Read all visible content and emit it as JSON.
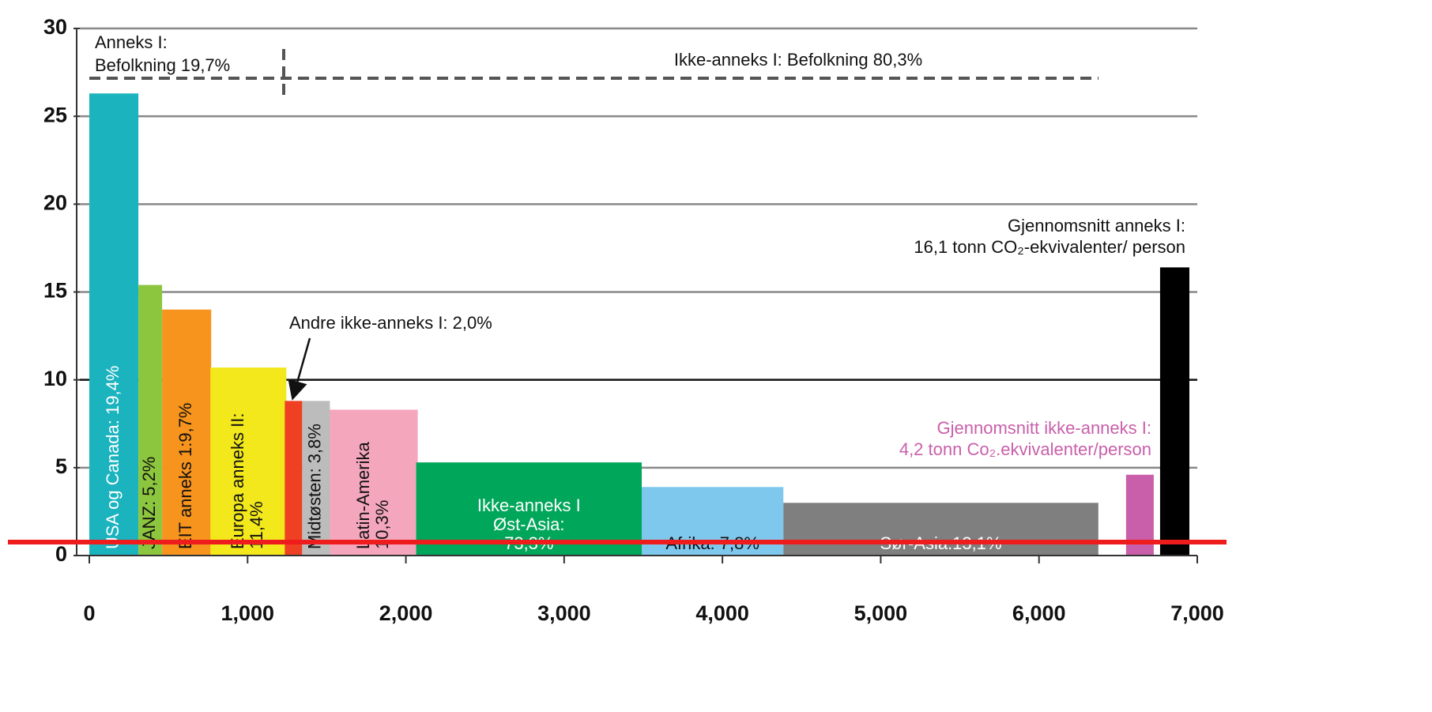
{
  "chart_data": {
    "type": "bar",
    "x_start": [
      0,
      310,
      460,
      765,
      1235,
      1345,
      1520,
      2065,
      3490,
      4385,
      6550,
      6765
    ],
    "x_end": [
      310,
      460,
      770,
      1245,
      1345,
      1520,
      2075,
      3490,
      4385,
      6375,
      6725,
      6950
    ],
    "values": [
      26.3,
      15.4,
      14.0,
      10.7,
      8.8,
      8.8,
      8.3,
      5.3,
      3.9,
      3.0,
      4.6,
      16.4
    ],
    "colors": [
      "#1bb3be",
      "#8cc63e",
      "#f7941d",
      "#f2e81c",
      "#ee4023",
      "#bcbcbc",
      "#f4a6bd",
      "#00a65a",
      "#7ec8ee",
      "#7f7f7f",
      "#c95faa",
      "#000000"
    ],
    "labels": [
      [
        "USA og Canada: 19,4%"
      ],
      [
        "JANZ: 5,2%"
      ],
      [
        "EIT anneks 1:9,7%"
      ],
      [
        "Europa anneks II:",
        "11,4%"
      ],
      null,
      [
        "Midtøsten: 3,8%"
      ],
      [
        "Latin-Amerika",
        "10,3%"
      ],
      [
        "Ikke-anneks I",
        "Øst-Asia:",
        "73,3%"
      ],
      [
        "Afrika: 7,8%"
      ],
      [
        "Sør-Asia:13,1%"
      ],
      null,
      null
    ],
    "xlim": [
      0,
      7000
    ],
    "xticks": [
      0,
      {
        "value": 1000,
        "label": "1,000"
      },
      {
        "value": 2000,
        "label": "2,000"
      },
      {
        "value": 3000,
        "label": "3,000"
      },
      {
        "value": 4000,
        "label": "4,000"
      },
      {
        "value": 5000,
        "label": "5,000"
      },
      {
        "value": 6000,
        "label": "6,000"
      },
      {
        "value": 7000,
        "label": "7,000"
      }
    ],
    "ylim": [
      0,
      30
    ],
    "yticks": [
      0,
      5,
      10,
      15,
      20,
      25,
      30
    ],
    "grid": true,
    "annotations": {
      "annex_population": [
        "Anneks I:",
        "Befolkning 19,7%"
      ],
      "non_annex_population": "Ikke-anneks I: Befolkning 80,3%",
      "other_non_annex": "Andre ikke-anneks I: 2,0%",
      "annex_average": [
        "Gjennomsnitt anneks I:",
        "16,1 tonn CO₂-ekvivalenter/ person"
      ],
      "non_annex_average": [
        "Gjennomsnitt ikke-anneks I:",
        "4,2 tonn Co₂.ekvivalenter/person"
      ]
    }
  }
}
